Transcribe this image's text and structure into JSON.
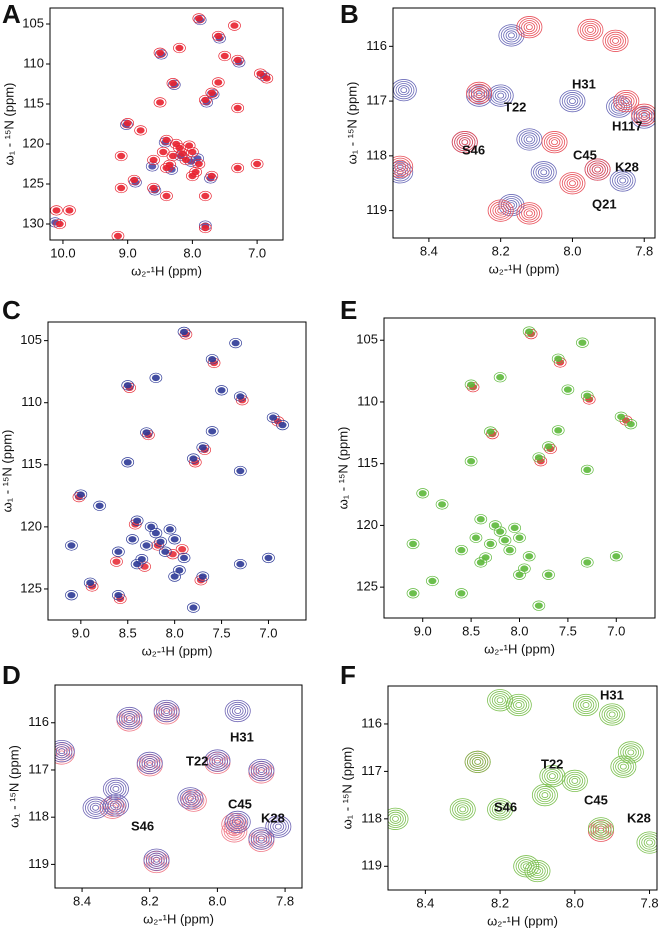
{
  "chart_data": [
    {
      "panel": "A",
      "type": "scatter",
      "style": "overview",
      "xlim": [
        10.2,
        6.6
      ],
      "ylim": [
        132,
        103
      ],
      "xticks": [
        {
          "value": 10,
          "label": "10.0"
        },
        {
          "value": 9,
          "label": "9.0"
        },
        {
          "value": 8,
          "label": "8.0"
        },
        {
          "value": 7,
          "label": "7.0"
        }
      ],
      "yticks": [
        105,
        110,
        115,
        120,
        125,
        130
      ],
      "x_label": "ω₂-¹H (ppm)",
      "y_label": "ω₁ - ¹⁵N (ppm)",
      "peak_labels": [],
      "series": [
        {
          "color": "#4a4aa6",
          "x": [
            7.88,
            8.48,
            7.58,
            7.28,
            6.9,
            7.68,
            8.28,
            7.78,
            9.02,
            8.42,
            8.18,
            8.02,
            8.32,
            7.92,
            8.62,
            8.88,
            7.72,
            8.58,
            7.8,
            10.12
          ],
          "values": [
            104.5,
            108.8,
            106.8,
            109.8,
            111.5,
            113.8,
            112.6,
            114.8,
            117.6,
            119.8,
            121.5,
            122.2,
            123.2,
            121.8,
            122.8,
            124.8,
            124.3,
            125.8,
            130.2,
            129.8
          ]
        },
        {
          "color": "#e8202e",
          "x": [
            7.9,
            7.35,
            7.6,
            8.5,
            8.2,
            7.5,
            7.3,
            6.95,
            6.85,
            7.6,
            8.3,
            7.7,
            7.8,
            8.5,
            7.3,
            9.0,
            8.8,
            8.4,
            8.2,
            8.0,
            8.3,
            8.1,
            7.9,
            8.4,
            8.6,
            9.1,
            8.9,
            8.0,
            7.7,
            7.3,
            7.0,
            8.6,
            9.1,
            7.8,
            10.1,
            9.9,
            10.05,
            9.15,
            7.8,
            8.4,
            8.25,
            8.15,
            8.05,
            8.35,
            8.45,
            7.95
          ],
          "values": [
            104.3,
            105.2,
            106.5,
            108.6,
            108.0,
            109.0,
            109.5,
            111.2,
            111.8,
            112.3,
            112.4,
            113.6,
            114.5,
            114.8,
            115.5,
            117.4,
            118.3,
            119.5,
            120.5,
            121.0,
            121.5,
            122.0,
            122.5,
            123.0,
            122.0,
            121.5,
            124.5,
            124.0,
            124.0,
            123.0,
            122.5,
            125.5,
            125.5,
            126.5,
            128.3,
            128.3,
            130.0,
            131.5,
            130.5,
            126.5,
            120.0,
            121.2,
            120.2,
            122.6,
            121.0,
            123.5
          ]
        }
      ]
    },
    {
      "panel": "B",
      "type": "scatter",
      "style": "zoom",
      "xlim": [
        8.5,
        7.77
      ],
      "ylim": [
        119.5,
        115.3
      ],
      "xticks": [
        8.4,
        8.2,
        {
          "value": 8,
          "label": "8.0"
        },
        7.8
      ],
      "yticks": [
        116,
        117,
        118,
        119
      ],
      "x_label": "ω₂-¹H (ppm)",
      "y_label": "ω₁ - ¹⁵N (ppm)",
      "peak_labels": [
        "H31",
        "T22",
        "H117",
        "S46",
        "C45",
        "K28",
        "Q21"
      ],
      "series": [
        {
          "color": "#6a6ab8",
          "x": [
            8.47,
            8.3,
            8.26,
            8.2,
            8.17,
            8.12,
            8.08,
            8.0,
            7.93,
            7.87,
            7.86,
            7.8,
            8.48,
            8.17
          ],
          "values": [
            116.8,
            117.75,
            116.9,
            116.9,
            115.8,
            117.7,
            118.3,
            117.0,
            118.25,
            117.1,
            118.45,
            117.3,
            118.3,
            118.9
          ]
        },
        {
          "color": "#e8505a",
          "x": [
            8.3,
            8.26,
            8.12,
            8.05,
            7.95,
            7.88,
            7.85,
            7.8,
            8.48,
            8.12,
            8.2,
            7.93,
            8.0
          ],
          "values": [
            117.75,
            116.85,
            115.65,
            117.75,
            115.7,
            115.9,
            117.0,
            117.25,
            118.2,
            119.05,
            119.0,
            118.25,
            118.5
          ]
        }
      ]
    },
    {
      "panel": "C",
      "type": "scatter",
      "style": "overview",
      "xlim": [
        9.35,
        6.6
      ],
      "ylim": [
        127.5,
        103.5
      ],
      "xticks": [
        {
          "value": 9,
          "label": "9.0"
        },
        8.5,
        {
          "value": 8,
          "label": "8.0"
        },
        7.5,
        {
          "value": 7,
          "label": "7.0"
        }
      ],
      "yticks": [
        105,
        110,
        115,
        120,
        125
      ],
      "x_label": "ω₂-¹H (ppm)",
      "y_label": "ω₁ - ¹⁵N (ppm)",
      "peak_labels": [],
      "series": [
        {
          "color": "#e8303a",
          "x": [
            7.88,
            8.48,
            7.58,
            7.28,
            6.9,
            7.68,
            8.28,
            7.78,
            9.02,
            8.42,
            8.18,
            8.02,
            8.32,
            7.92,
            8.62,
            8.88,
            7.72,
            8.58
          ],
          "values": [
            104.5,
            108.8,
            106.8,
            109.8,
            111.5,
            113.8,
            112.6,
            114.8,
            117.6,
            119.8,
            121.5,
            122.2,
            123.2,
            121.8,
            122.8,
            124.8,
            124.3,
            125.8
          ]
        },
        {
          "color": "#2c3896",
          "x": [
            7.9,
            7.35,
            7.6,
            8.5,
            8.2,
            7.5,
            7.3,
            6.95,
            6.85,
            7.6,
            8.3,
            7.7,
            7.8,
            8.5,
            7.3,
            9.0,
            8.8,
            8.4,
            8.2,
            8.0,
            8.3,
            8.1,
            7.9,
            8.4,
            8.6,
            9.1,
            8.9,
            8.0,
            7.7,
            7.3,
            7.0,
            8.6,
            9.1,
            7.8,
            8.25,
            8.15,
            8.05,
            8.35,
            8.45,
            7.95
          ],
          "values": [
            104.3,
            105.2,
            106.5,
            108.6,
            108.0,
            109.0,
            109.5,
            111.2,
            111.8,
            112.3,
            112.4,
            113.6,
            114.5,
            114.8,
            115.5,
            117.4,
            118.3,
            119.5,
            120.5,
            121.0,
            121.5,
            122.0,
            122.5,
            123.0,
            122.0,
            121.5,
            124.5,
            124.0,
            124.0,
            123.0,
            122.5,
            125.5,
            125.5,
            126.5,
            120.0,
            121.2,
            120.2,
            122.6,
            121.0,
            123.5
          ]
        }
      ]
    },
    {
      "panel": "E",
      "type": "scatter",
      "style": "overview",
      "xlim": [
        9.4,
        6.6
      ],
      "ylim": [
        127.5,
        103.2
      ],
      "xticks": [
        {
          "value": 9,
          "label": "9.0"
        },
        8.5,
        {
          "value": 8,
          "label": "8.0"
        },
        7.5,
        {
          "value": 7,
          "label": "7.0"
        }
      ],
      "yticks": [
        105,
        110,
        115,
        120,
        125
      ],
      "x_label": "ω₂-¹H (ppm)",
      "y_label": "ω₁ - ¹⁵N (ppm)",
      "peak_labels": [],
      "series": [
        {
          "color": "#e8303a",
          "x": [
            7.88,
            8.48,
            7.58,
            7.28,
            6.9,
            7.68,
            8.28,
            7.78
          ],
          "values": [
            104.5,
            108.8,
            106.8,
            109.8,
            111.5,
            113.8,
            112.6,
            114.8
          ]
        },
        {
          "color": "#5cb83a",
          "x": [
            7.9,
            7.35,
            7.6,
            8.5,
            8.2,
            7.5,
            7.3,
            6.95,
            6.85,
            7.6,
            8.3,
            7.7,
            7.8,
            8.5,
            7.3,
            9.0,
            8.8,
            8.4,
            8.2,
            8.0,
            8.3,
            8.1,
            7.9,
            8.4,
            8.6,
            9.1,
            8.9,
            8.0,
            7.7,
            7.3,
            7.0,
            8.6,
            9.1,
            7.8,
            8.25,
            8.15,
            8.05,
            8.35,
            8.45,
            7.95
          ],
          "values": [
            104.3,
            105.2,
            106.5,
            108.6,
            108.0,
            109.0,
            109.5,
            111.2,
            111.8,
            112.3,
            112.4,
            113.6,
            114.5,
            114.8,
            115.5,
            117.4,
            118.3,
            119.5,
            120.5,
            121.0,
            121.5,
            122.0,
            122.5,
            123.0,
            122.0,
            121.5,
            124.5,
            124.0,
            124.0,
            123.0,
            122.5,
            125.5,
            125.5,
            126.5,
            120.0,
            121.2,
            120.2,
            122.6,
            121.0,
            123.5
          ]
        }
      ]
    },
    {
      "panel": "D",
      "type": "scatter",
      "style": "zoom",
      "xlim": [
        8.48,
        7.75
      ],
      "ylim": [
        119.5,
        115.2
      ],
      "xticks": [
        8.4,
        8.2,
        {
          "value": 8,
          "label": "8.0"
        },
        7.8
      ],
      "yticks": [
        116,
        117,
        118,
        119
      ],
      "x_label": "ω₂-¹H (ppm)",
      "y_label": "ω₁ - ¹⁵N (ppm)",
      "peak_labels": [
        "H31",
        "T22",
        "C45",
        "K28",
        "S46"
      ],
      "series": [
        {
          "color": "#f07a88",
          "x": [
            8.46,
            8.31,
            8.26,
            8.2,
            8.15,
            8.07,
            8.0,
            7.95,
            7.87,
            7.87,
            8.18,
            7.95
          ],
          "values": [
            116.65,
            117.8,
            115.95,
            116.9,
            115.8,
            117.65,
            116.85,
            118.15,
            117.05,
            118.5,
            118.95,
            118.3
          ]
        },
        {
          "color": "#6e64b4",
          "x": [
            8.46,
            8.3,
            8.26,
            8.2,
            8.15,
            8.08,
            8.0,
            7.94,
            7.87,
            7.87,
            8.18,
            8.3,
            7.82,
            7.94,
            8.36
          ],
          "values": [
            116.6,
            117.75,
            115.9,
            116.85,
            115.75,
            117.6,
            116.8,
            118.1,
            117.0,
            118.45,
            118.9,
            117.4,
            118.2,
            115.75,
            117.8
          ]
        }
      ]
    },
    {
      "panel": "F",
      "type": "scatter",
      "style": "zoom",
      "xlim": [
        8.5,
        7.78
      ],
      "ylim": [
        119.5,
        115.2
      ],
      "xticks": [
        8.4,
        8.2,
        {
          "value": 8,
          "label": "8.0"
        },
        7.8
      ],
      "yticks": [
        116,
        117,
        118,
        119
      ],
      "x_label": "ω₂-¹H (ppm)",
      "y_label": "ω₁ - ¹⁵N (ppm)",
      "peak_labels": [
        "H31",
        "T22",
        "C45",
        "K28",
        "S46"
      ],
      "series": [
        {
          "color": "#e8505a",
          "x": [
            8.26,
            7.93
          ],
          "values": [
            116.8,
            118.25
          ]
        },
        {
          "color": "#7cc050",
          "x": [
            8.48,
            8.3,
            8.26,
            8.2,
            8.15,
            8.08,
            8.0,
            7.93,
            7.87,
            7.85,
            8.13,
            8.1,
            7.8,
            7.97,
            7.9,
            8.2,
            8.06
          ],
          "values": [
            118.0,
            117.8,
            116.8,
            115.5,
            115.6,
            117.5,
            117.2,
            118.2,
            116.9,
            116.6,
            119.0,
            119.1,
            118.5,
            115.6,
            115.8,
            117.8,
            117.1
          ]
        }
      ]
    }
  ]
}
